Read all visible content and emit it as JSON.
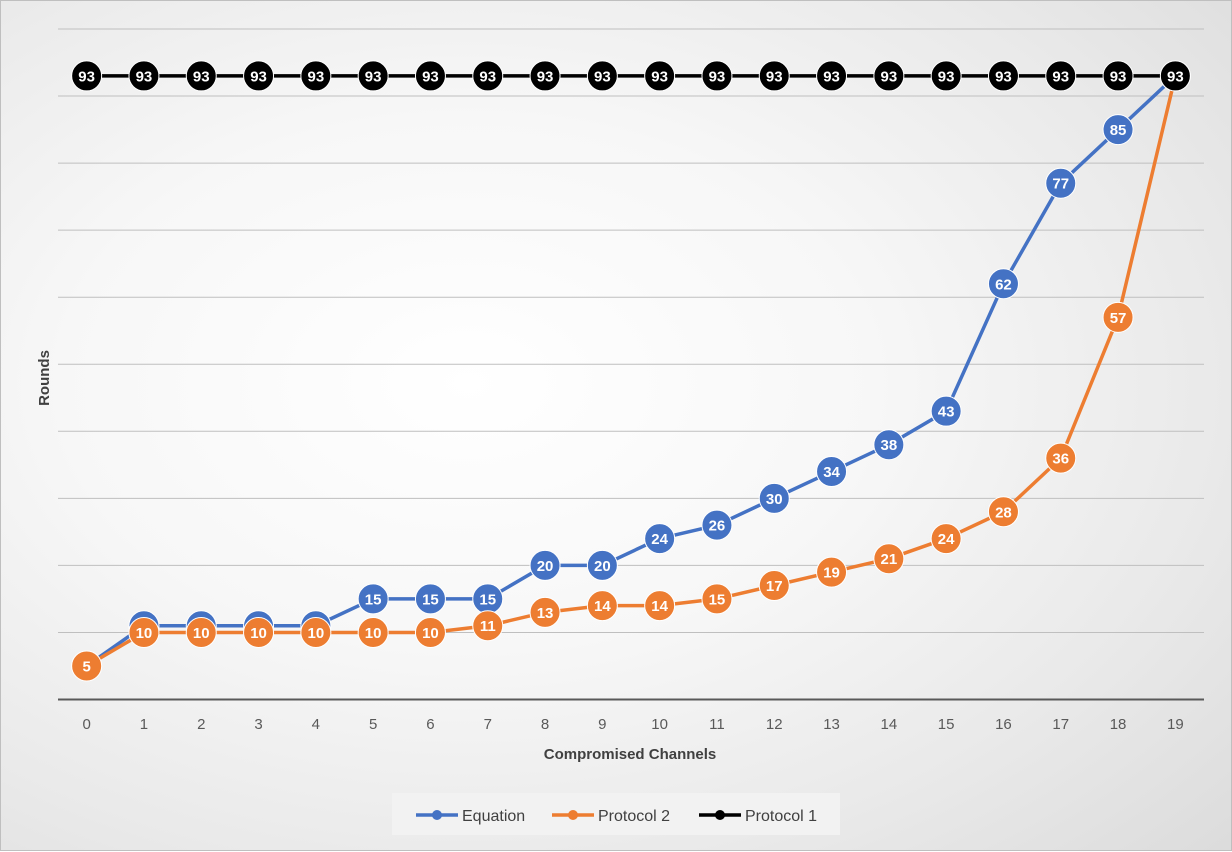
{
  "chart_data": {
    "type": "line",
    "title": "",
    "xlabel": "Compromised Channels",
    "ylabel": "Rounds",
    "categories": [
      "0",
      "1",
      "2",
      "3",
      "4",
      "5",
      "6",
      "7",
      "8",
      "9",
      "10",
      "11",
      "12",
      "13",
      "14",
      "15",
      "16",
      "17",
      "18",
      "19"
    ],
    "ylim": [
      0,
      100
    ],
    "grid": true,
    "legend_position": "bottom",
    "series": [
      {
        "name": "Equation",
        "color": "#4472c4",
        "values": [
          5,
          11,
          11,
          11,
          11,
          15,
          15,
          15,
          20,
          20,
          24,
          26,
          30,
          34,
          38,
          43,
          62,
          77,
          85,
          93
        ]
      },
      {
        "name": "Protocol 2",
        "color": "#ed7d31",
        "values": [
          5,
          10,
          10,
          10,
          10,
          10,
          10,
          11,
          13,
          14,
          14,
          15,
          17,
          19,
          21,
          24,
          28,
          36,
          57,
          93
        ]
      },
      {
        "name": "Protocol 1",
        "color": "#000000",
        "values": [
          93,
          93,
          93,
          93,
          93,
          93,
          93,
          93,
          93,
          93,
          93,
          93,
          93,
          93,
          93,
          93,
          93,
          93,
          93,
          93
        ]
      }
    ]
  }
}
